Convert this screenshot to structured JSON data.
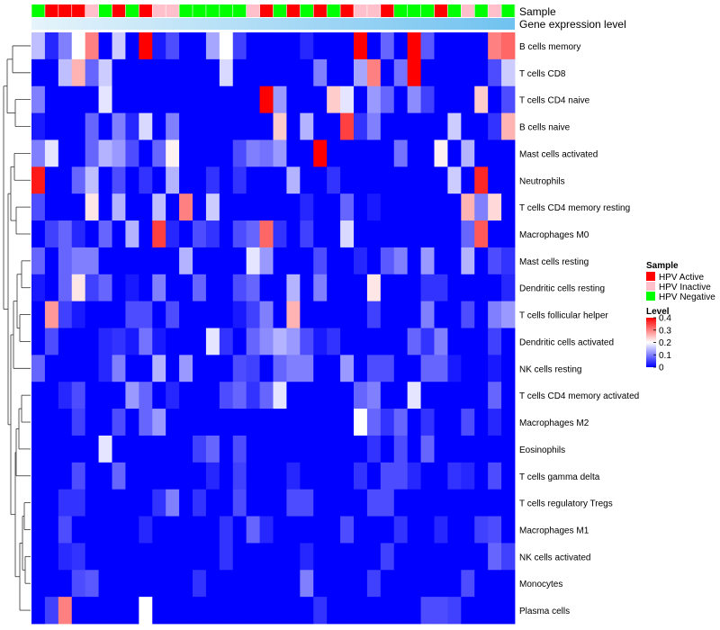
{
  "chart_data": {
    "type": "heatmap",
    "annotation_labels": [
      "Sample",
      "Gene expression level"
    ],
    "legend": {
      "sample_title": "Sample",
      "sample_entries": [
        {
          "label": "HPV Active",
          "color": "#ff0000"
        },
        {
          "label": "HPV Inactive",
          "color": "#ffc0cb"
        },
        {
          "label": "HPV Negative",
          "color": "#00ff00"
        }
      ],
      "level_title": "Level",
      "level_ticks": [
        "0.4",
        "0.3",
        "0.2",
        "0.1",
        "0"
      ],
      "level_tick_values": [
        0.4,
        0.3,
        0.2,
        0.1,
        0.0
      ]
    },
    "value_range": [
      0,
      0.4
    ],
    "colors": {
      "low": "#0000ff",
      "mid": "#ffffff",
      "high": "#ff0000",
      "gene_expression_start": "#e6f4fb",
      "gene_expression_end": "#70c2f0"
    },
    "sample_groups": [
      "Negative",
      "Active",
      "Active",
      "Active",
      "Inactive",
      "Negative",
      "Active",
      "Negative",
      "Active",
      "Inactive",
      "Inactive",
      "Negative",
      "Negative",
      "Negative",
      "Negative",
      "Negative",
      "Inactive",
      "Active",
      "Negative",
      "Active",
      "Negative",
      "Active",
      "Negative",
      "Active",
      "Inactive",
      "Inactive",
      "Active",
      "Negative",
      "Negative",
      "Negative",
      "Active",
      "Negative",
      "Inactive",
      "Negative",
      "Inactive",
      "Negative"
    ],
    "row_labels": [
      "B cells memory",
      "T cells CD8",
      "T cells CD4 naive",
      "B cells naive",
      "Mast cells activated",
      "Neutrophils",
      "T cells CD4 memory resting",
      "Macrophages M0",
      "Mast cells resting",
      "Dendritic cells resting",
      "T cells follicular helper",
      "Dendritic cells activated",
      "NK cells resting",
      "T cells CD4 memory activated",
      "Macrophages M2",
      "Eosinophils",
      "T cells gamma delta",
      "T cells regulatory  Tregs",
      "Macrophages M1",
      "NK cells activated",
      "Monocytes",
      "Plasma cells"
    ],
    "values": [
      [
        0.15,
        0.03,
        0.1,
        0.2,
        0.3,
        0.0,
        0.16,
        0.0,
        0.4,
        0.02,
        0.06,
        0.0,
        0.0,
        0.13,
        0.2,
        0.05,
        0.0,
        0.0,
        0.0,
        0.0,
        0.03,
        0.0,
        0.0,
        0.0,
        0.4,
        0.0,
        0.08,
        0.0,
        0.4,
        0.07,
        0.0,
        0.0,
        0.0,
        0.0,
        0.3,
        0.32
      ],
      [
        0.0,
        0.0,
        0.15,
        0.26,
        0.08,
        0.16,
        0.0,
        0.0,
        0.0,
        0.0,
        0.0,
        0.0,
        0.0,
        0.0,
        0.17,
        0.0,
        0.0,
        0.0,
        0.0,
        0.0,
        0.0,
        0.1,
        0.0,
        0.0,
        0.13,
        0.3,
        0.0,
        0.09,
        0.4,
        0.0,
        0.0,
        0.0,
        0.0,
        0.0,
        0.06,
        0.16
      ],
      [
        0.1,
        0.0,
        0.0,
        0.0,
        0.0,
        0.18,
        0.0,
        0.0,
        0.0,
        0.0,
        0.0,
        0.0,
        0.0,
        0.0,
        0.0,
        0.0,
        0.0,
        0.4,
        0.12,
        0.0,
        0.0,
        0.0,
        0.24,
        0.18,
        0.0,
        0.12,
        0.08,
        0.0,
        0.11,
        0.05,
        0.0,
        0.0,
        0.0,
        0.24,
        0.0,
        0.06
      ],
      [
        0.02,
        0.0,
        0.0,
        0.0,
        0.08,
        0.0,
        0.1,
        0.03,
        0.17,
        0.0,
        0.1,
        0.0,
        0.0,
        0.0,
        0.0,
        0.0,
        0.0,
        0.0,
        0.24,
        0.0,
        0.14,
        0.0,
        0.0,
        0.35,
        0.04,
        0.1,
        0.0,
        0.0,
        0.0,
        0.0,
        0.0,
        0.16,
        0.0,
        0.0,
        0.04,
        0.26
      ],
      [
        0.1,
        0.18,
        0.0,
        0.0,
        0.08,
        0.14,
        0.12,
        0.06,
        0.0,
        0.08,
        0.21,
        0.0,
        0.0,
        0.0,
        0.0,
        0.06,
        0.1,
        0.09,
        0.12,
        0.0,
        0.0,
        0.4,
        0.0,
        0.0,
        0.0,
        0.0,
        0.0,
        0.09,
        0.0,
        0.0,
        0.21,
        0.0,
        0.14,
        0.0,
        0.0,
        0.0
      ],
      [
        0.38,
        0.0,
        0.0,
        0.08,
        0.15,
        0.0,
        0.06,
        0.0,
        0.04,
        0.0,
        0.14,
        0.0,
        0.0,
        0.04,
        0.0,
        0.04,
        0.0,
        0.0,
        0.0,
        0.14,
        0.0,
        0.0,
        0.04,
        0.0,
        0.0,
        0.0,
        0.0,
        0.0,
        0.0,
        0.0,
        0.0,
        0.16,
        0.0,
        0.37,
        0.0,
        0.0
      ],
      [
        0.06,
        0.0,
        0.0,
        0.0,
        0.22,
        0.0,
        0.14,
        0.0,
        0.0,
        0.15,
        0.0,
        0.3,
        0.0,
        0.16,
        0.0,
        0.0,
        0.0,
        0.0,
        0.0,
        0.0,
        0.03,
        0.0,
        0.0,
        0.08,
        0.0,
        0.02,
        0.0,
        0.0,
        0.0,
        0.0,
        0.0,
        0.0,
        0.26,
        0.1,
        0.23,
        0.0
      ],
      [
        0.0,
        0.05,
        0.08,
        0.03,
        0.0,
        0.08,
        0.0,
        0.14,
        0.0,
        0.35,
        0.03,
        0.0,
        0.06,
        0.04,
        0.0,
        0.06,
        0.08,
        0.32,
        0.04,
        0.0,
        0.05,
        0.0,
        0.0,
        0.17,
        0.0,
        0.0,
        0.0,
        0.0,
        0.0,
        0.0,
        0.0,
        0.0,
        0.08,
        0.33,
        0.0,
        0.0
      ],
      [
        0.08,
        0.0,
        0.08,
        0.1,
        0.1,
        0.0,
        0.0,
        0.0,
        0.0,
        0.0,
        0.0,
        0.14,
        0.0,
        0.0,
        0.0,
        0.0,
        0.18,
        0.12,
        0.0,
        0.0,
        0.0,
        0.06,
        0.0,
        0.0,
        0.03,
        0.0,
        0.07,
        0.1,
        0.0,
        0.12,
        0.0,
        0.0,
        0.14,
        0.0,
        0.06,
        0.04
      ],
      [
        0.02,
        0.0,
        0.08,
        0.22,
        0.05,
        0.08,
        0.0,
        0.02,
        0.0,
        0.1,
        0.0,
        0.0,
        0.08,
        0.0,
        0.0,
        0.06,
        0.08,
        0.0,
        0.0,
        0.14,
        0.0,
        0.1,
        0.0,
        0.0,
        0.0,
        0.22,
        0.0,
        0.0,
        0.0,
        0.04,
        0.04,
        0.0,
        0.0,
        0.0,
        0.0,
        0.03
      ],
      [
        0.0,
        0.28,
        0.05,
        0.02,
        0.0,
        0.0,
        0.0,
        0.06,
        0.06,
        0.0,
        0.06,
        0.0,
        0.0,
        0.0,
        0.0,
        0.02,
        0.05,
        0.1,
        0.0,
        0.26,
        0.0,
        0.0,
        0.0,
        0.0,
        0.0,
        0.05,
        0.0,
        0.0,
        0.0,
        0.1,
        0.0,
        0.0,
        0.06,
        0.0,
        0.1,
        0.12
      ],
      [
        0.0,
        0.06,
        0.0,
        0.0,
        0.0,
        0.03,
        0.04,
        0.02,
        0.09,
        0.02,
        0.0,
        0.0,
        0.0,
        0.18,
        0.04,
        0.0,
        0.08,
        0.11,
        0.14,
        0.12,
        0.06,
        0.02,
        0.04,
        0.0,
        0.0,
        0.0,
        0.0,
        0.0,
        0.08,
        0.04,
        0.1,
        0.0,
        0.0,
        0.0,
        0.05,
        0.0
      ],
      [
        0.08,
        0.0,
        0.0,
        0.0,
        0.0,
        0.03,
        0.1,
        0.0,
        0.0,
        0.14,
        0.0,
        0.12,
        0.0,
        0.0,
        0.0,
        0.06,
        0.05,
        0.0,
        0.08,
        0.1,
        0.1,
        0.0,
        0.0,
        0.12,
        0.0,
        0.06,
        0.06,
        0.0,
        0.0,
        0.08,
        0.08,
        0.02,
        0.0,
        0.0,
        0.02,
        0.0
      ],
      [
        0.0,
        0.0,
        0.03,
        0.06,
        0.0,
        0.0,
        0.0,
        0.12,
        0.08,
        0.0,
        0.03,
        0.0,
        0.0,
        0.0,
        0.06,
        0.08,
        0.04,
        0.08,
        0.18,
        0.0,
        0.0,
        0.0,
        0.0,
        0.0,
        0.08,
        0.1,
        0.0,
        0.0,
        0.18,
        0.0,
        0.0,
        0.0,
        0.0,
        0.0,
        0.08,
        0.0
      ],
      [
        0.0,
        0.0,
        0.0,
        0.05,
        0.0,
        0.0,
        0.06,
        0.0,
        0.08,
        0.12,
        0.0,
        0.0,
        0.0,
        0.0,
        0.0,
        0.0,
        0.0,
        0.0,
        0.0,
        0.0,
        0.0,
        0.0,
        0.0,
        0.0,
        0.2,
        0.08,
        0.04,
        0.08,
        0.0,
        0.04,
        0.0,
        0.0,
        0.06,
        0.0,
        0.03,
        0.0
      ],
      [
        0.0,
        0.0,
        0.0,
        0.0,
        0.0,
        0.18,
        0.0,
        0.0,
        0.0,
        0.0,
        0.0,
        0.0,
        0.05,
        0.08,
        0.0,
        0.06,
        0.0,
        0.0,
        0.0,
        0.0,
        0.0,
        0.0,
        0.0,
        0.0,
        0.0,
        0.04,
        0.0,
        0.06,
        0.0,
        0.08,
        0.0,
        0.0,
        0.0,
        0.0,
        0.0,
        0.0
      ],
      [
        0.0,
        0.0,
        0.0,
        0.06,
        0.0,
        0.0,
        0.08,
        0.0,
        0.0,
        0.0,
        0.0,
        0.0,
        0.0,
        0.03,
        0.0,
        0.05,
        0.0,
        0.0,
        0.0,
        0.03,
        0.0,
        0.0,
        0.0,
        0.0,
        0.04,
        0.0,
        0.06,
        0.06,
        0.03,
        0.0,
        0.0,
        0.04,
        0.03,
        0.0,
        0.06,
        0.0
      ],
      [
        0.0,
        0.0,
        0.04,
        0.04,
        0.0,
        0.0,
        0.0,
        0.0,
        0.0,
        0.04,
        0.1,
        0.0,
        0.04,
        0.0,
        0.0,
        0.06,
        0.0,
        0.0,
        0.0,
        0.06,
        0.06,
        0.0,
        0.0,
        0.0,
        0.0,
        0.06,
        0.06,
        0.0,
        0.0,
        0.0,
        0.0,
        0.0,
        0.0,
        0.0,
        0.0,
        0.0
      ],
      [
        0.0,
        0.0,
        0.06,
        0.0,
        0.0,
        0.0,
        0.0,
        0.0,
        0.03,
        0.0,
        0.0,
        0.0,
        0.0,
        0.0,
        0.04,
        0.0,
        0.08,
        0.03,
        0.0,
        0.0,
        0.0,
        0.0,
        0.0,
        0.06,
        0.0,
        0.0,
        0.0,
        0.04,
        0.0,
        0.0,
        0.03,
        0.0,
        0.0,
        0.05,
        0.06,
        0.0
      ],
      [
        0.0,
        0.0,
        0.03,
        0.04,
        0.0,
        0.0,
        0.0,
        0.0,
        0.0,
        0.0,
        0.0,
        0.0,
        0.0,
        0.0,
        0.04,
        0.0,
        0.0,
        0.0,
        0.0,
        0.0,
        0.03,
        0.0,
        0.0,
        0.0,
        0.0,
        0.0,
        0.05,
        0.0,
        0.0,
        0.0,
        0.0,
        0.0,
        0.0,
        0.0,
        0.08,
        0.05
      ],
      [
        0.0,
        0.0,
        0.0,
        0.06,
        0.07,
        0.0,
        0.0,
        0.0,
        0.0,
        0.0,
        0.0,
        0.0,
        0.04,
        0.0,
        0.0,
        0.0,
        0.0,
        0.0,
        0.0,
        0.0,
        0.1,
        0.0,
        0.0,
        0.0,
        0.0,
        0.05,
        0.0,
        0.0,
        0.0,
        0.0,
        0.0,
        0.0,
        0.06,
        0.0,
        0.0,
        0.0
      ],
      [
        0.0,
        0.05,
        0.3,
        0.0,
        0.0,
        0.0,
        0.0,
        0.0,
        0.2,
        0.0,
        0.0,
        0.0,
        0.0,
        0.0,
        0.0,
        0.0,
        0.0,
        0.0,
        0.0,
        0.0,
        0.0,
        0.04,
        0.0,
        0.0,
        0.0,
        0.0,
        0.0,
        0.0,
        0.0,
        0.06,
        0.06,
        0.05,
        0.0,
        0.0,
        0.0,
        0.0
      ]
    ]
  }
}
